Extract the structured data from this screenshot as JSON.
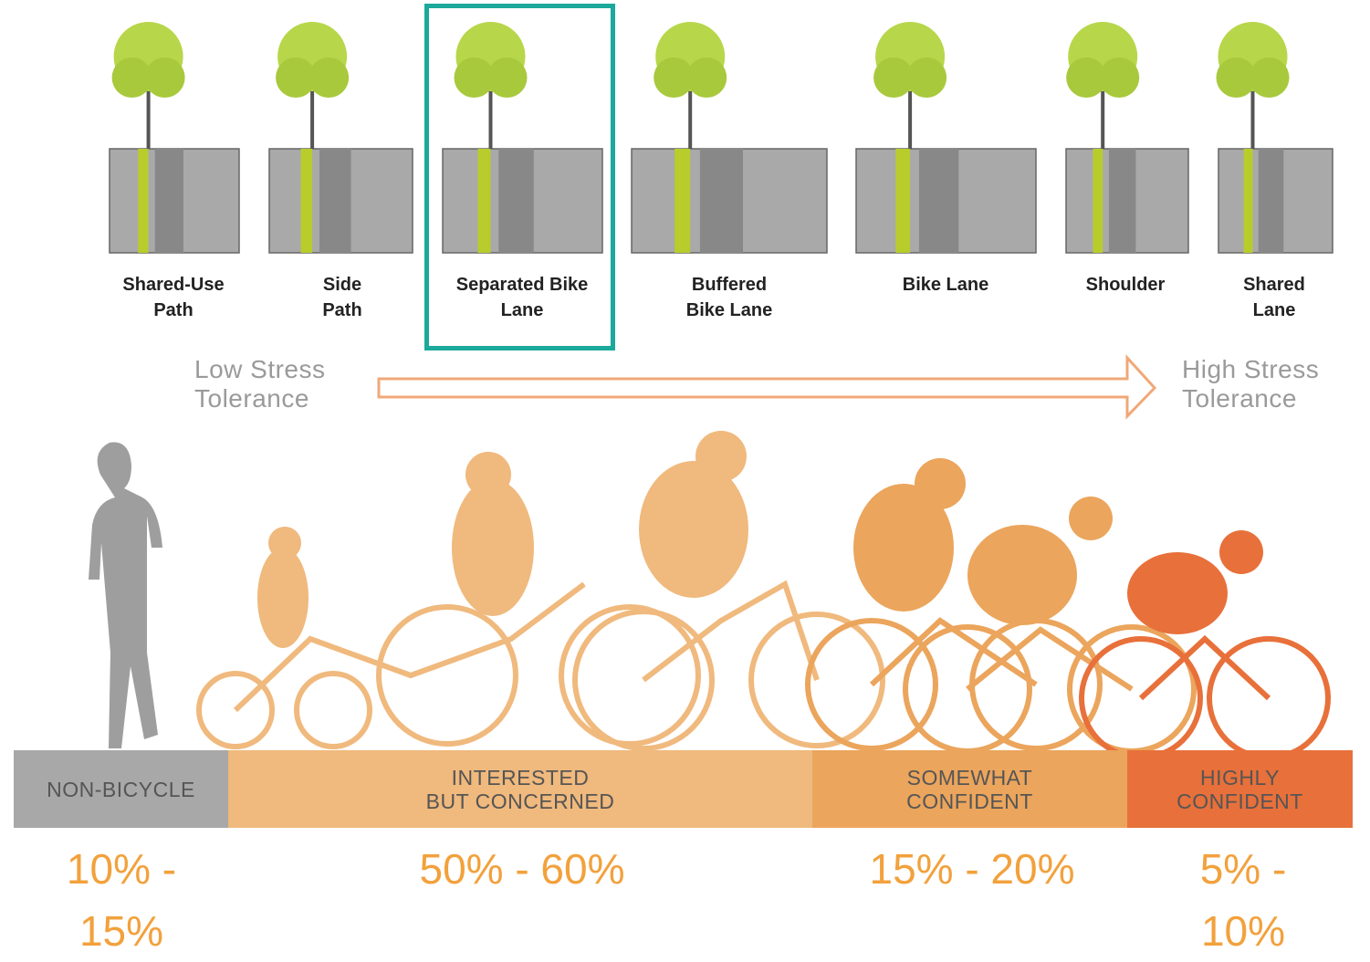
{
  "facilities": [
    {
      "lines": [
        "Shared-Use",
        "Path"
      ]
    },
    {
      "lines": [
        "Side",
        "Path"
      ]
    },
    {
      "lines": [
        "Separated Bike",
        "Lane"
      ]
    },
    {
      "lines": [
        "Buffered",
        "Bike Lane"
      ]
    },
    {
      "lines": [
        "Bike Lane"
      ]
    },
    {
      "lines": [
        "Shoulder"
      ]
    },
    {
      "lines": [
        "Shared",
        "Lane"
      ]
    }
  ],
  "stress": {
    "low": [
      "Low Stress",
      "Tolerance"
    ],
    "high": [
      "High Stress",
      "Tolerance"
    ]
  },
  "groups": [
    {
      "lines": [
        "NON-BICYCLE"
      ],
      "share": "10% - 15%"
    },
    {
      "lines": [
        "INTERESTED",
        "BUT CONCERNED"
      ],
      "share": "50% - 60%"
    },
    {
      "lines": [
        "SOMEWHAT",
        "CONFIDENT"
      ],
      "share": "15% - 20%"
    },
    {
      "lines": [
        "HIGHLY",
        "CONFIDENT"
      ],
      "share": "5% - 10%"
    }
  ]
}
